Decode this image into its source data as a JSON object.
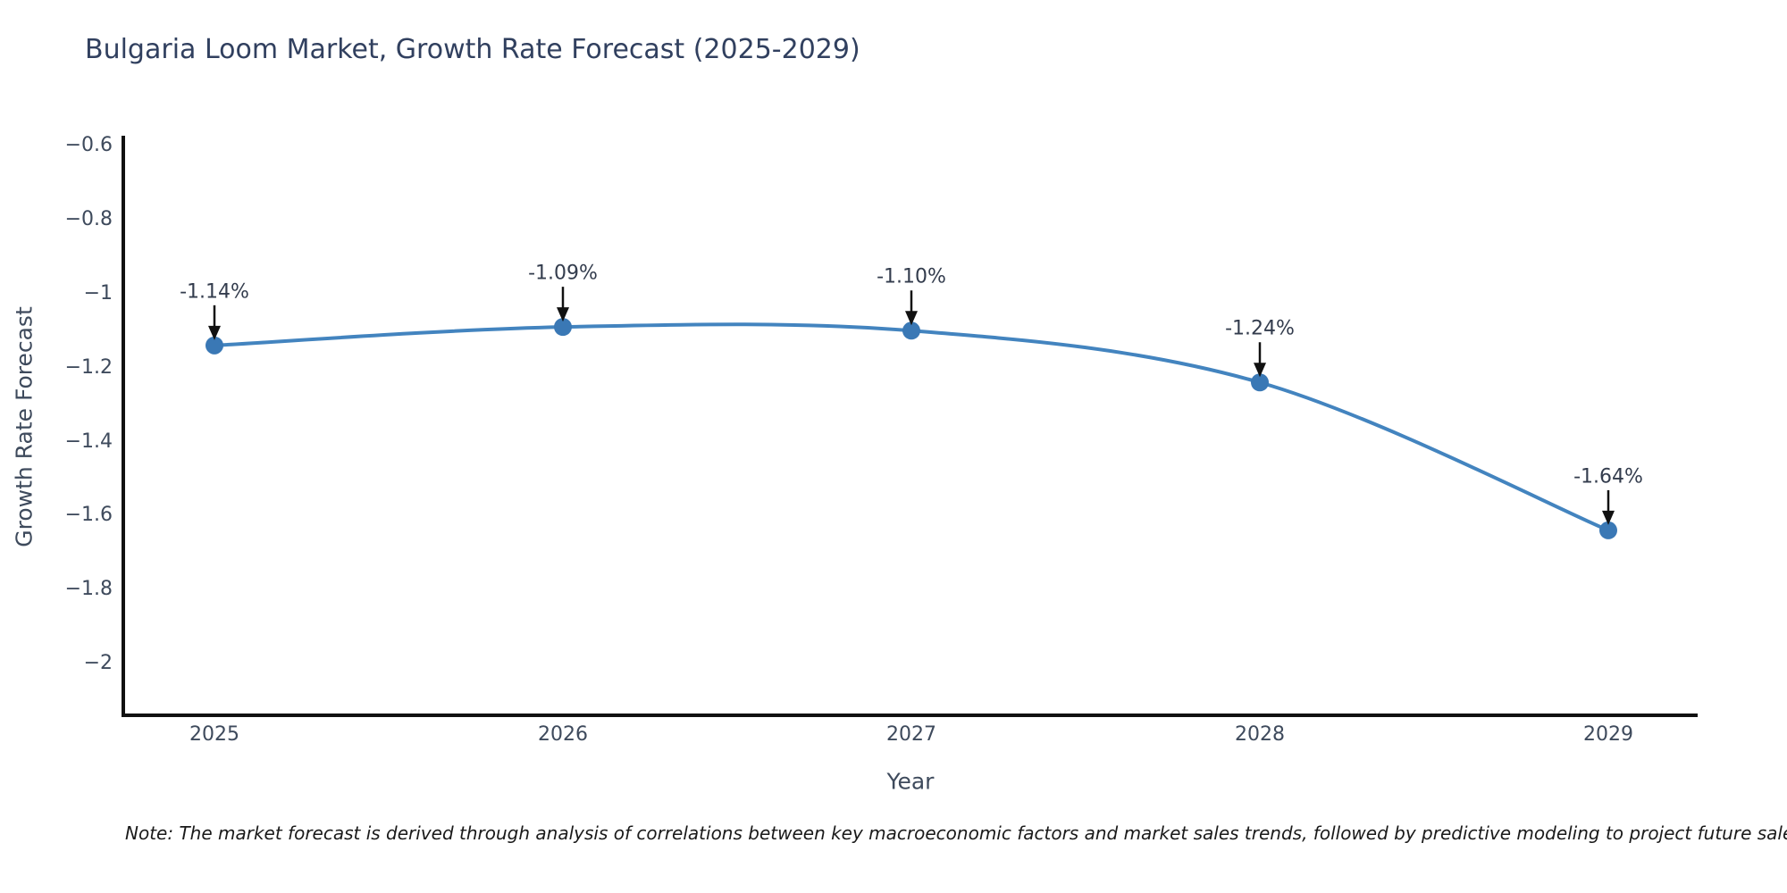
{
  "chart": {
    "title": "Bulgaria Loom Market, Growth Rate Forecast (2025-2029)",
    "xlabel": "Year",
    "ylabel": "Growth Rate Forecast",
    "note": "Note: The market forecast is derived through analysis of correlations between key macroeconomic factors and market sales trends, followed by predictive modeling to project future sales.",
    "colors": {
      "line": "#4384bf",
      "marker": "#3a78b5",
      "spine": "#111111",
      "arrow": "#111111",
      "title_text": "#31405f",
      "tick_text": "#3e4a5c",
      "annotation_text": "#333c4d"
    }
  },
  "chart_data": {
    "type": "line",
    "title": "Bulgaria Loom Market, Growth Rate Forecast (2025-2029)",
    "xlabel": "Year",
    "ylabel": "Growth Rate Forecast",
    "categories": [
      "2025",
      "2026",
      "2027",
      "2028",
      "2029"
    ],
    "values": [
      -1.14,
      -1.09,
      -1.1,
      -1.24,
      -1.64
    ],
    "point_labels": [
      "-1.14%",
      "-1.09%",
      "-1.10%",
      "-1.24%",
      "-1.64%"
    ],
    "yticks": [
      -0.6,
      -0.8,
      -1,
      -1.2,
      -1.4,
      -1.6,
      -1.8,
      -2
    ],
    "ytick_labels": [
      "−0.6",
      "−0.8",
      "−1",
      "−1.2",
      "−1.4",
      "−1.6",
      "−1.8",
      "−2"
    ],
    "ylim": [
      -2.14,
      -0.573
    ],
    "grid": false,
    "legend": false,
    "line_shape": "spline",
    "annotations": "arrow-down-to-point",
    "note": "Note: The market forecast is derived through analysis of correlations between key macroeconomic factors and market sales trends, followed by predictive modeling to project future sales."
  }
}
